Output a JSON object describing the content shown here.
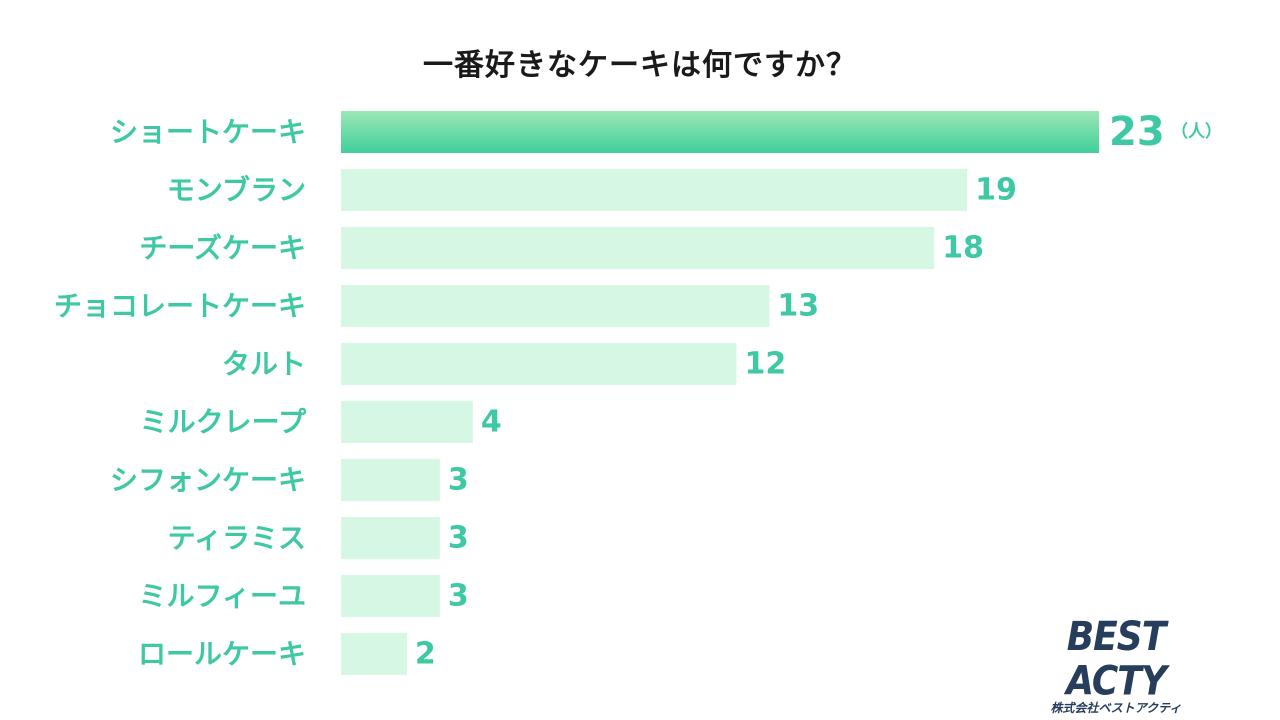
{
  "chart_data": {
    "type": "bar",
    "orientation": "horizontal",
    "title": "一番好きなケーキは何ですか？",
    "categories": [
      "ショートケーキ",
      "モンブラン",
      "チーズケーキ",
      "チョコレートケーキ",
      "タルト",
      "ミルクレープ",
      "シフォンケーキ",
      "ティラミス",
      "ミルフィーユ",
      "ロールケーキ"
    ],
    "values": [
      23,
      19,
      18,
      13,
      12,
      4,
      3,
      3,
      3,
      2
    ],
    "unit": "（人）",
    "xlim": [
      0,
      23
    ],
    "grid": false,
    "legend": "none",
    "highlight_index": 0
  },
  "colors": {
    "highlight_top": "#9de8b5",
    "highlight_bottom": "#3ecf9c",
    "bar": "#d6f7e4",
    "label": "#3ec8a4",
    "title": "#1a1a1a",
    "logo": "#263d5c"
  },
  "logo": {
    "main": "BEST ACTY",
    "sub": "株式会社ベストアクティ"
  }
}
